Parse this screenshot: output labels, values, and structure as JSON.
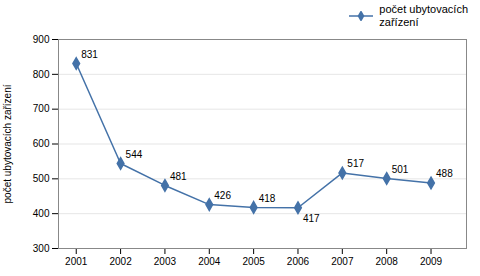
{
  "chart_data": {
    "type": "line",
    "x": [
      2001,
      2002,
      2003,
      2004,
      2005,
      2006,
      2007,
      2008,
      2009
    ],
    "series": [
      {
        "name": "počet ubytovacích\nzařízení",
        "color": "#4472a8",
        "marker": "diamond",
        "values": [
          831,
          544,
          481,
          426,
          418,
          417,
          517,
          501,
          488
        ]
      }
    ],
    "ylabel": "počet ubytovacích zařízení",
    "xlim": [
      2000.6,
      2009.8
    ],
    "xticks": [
      2001,
      2002,
      2003,
      2004,
      2005,
      2006,
      2007,
      2008,
      2009
    ],
    "ylim": [
      300,
      900
    ],
    "yticks": [
      300,
      400,
      500,
      600,
      700,
      800,
      900
    ],
    "grid": true,
    "legend": "upper right",
    "data_labels": true
  }
}
